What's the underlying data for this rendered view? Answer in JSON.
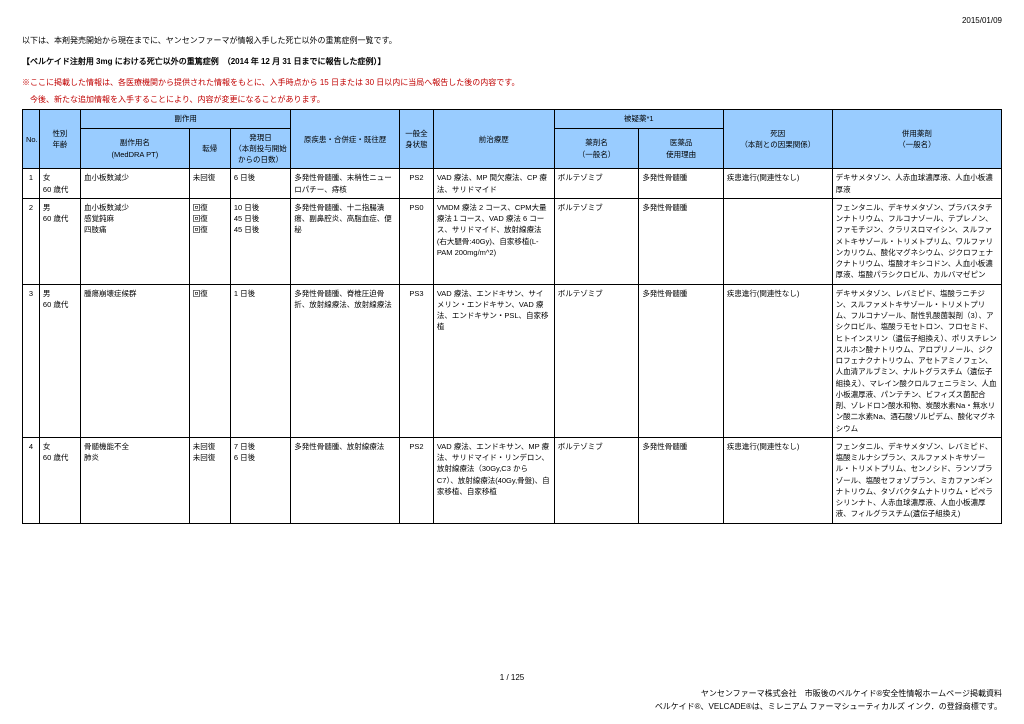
{
  "date": "2015/01/09",
  "intro": "以下は、本剤発売開始から現在までに、ヤンセンファーマが情報入手した死亡以外の重篤症例一覧です。",
  "title": "【ベルケイド注射用 3mg における死亡以外の重篤症例　（2014 年 12 月 31 日までに報告した症例）】",
  "note1": "※ここに掲載した情報は、各医療機関から提供された情報をもとに、入手時点から 15 日または 30 日以内に当局へ報告した後の内容です。",
  "note2": "　今後、新たな追加情報を入手することにより、内容が変更になることがあります。",
  "headers": {
    "no": "No.",
    "sex_age": "性別\n年齢",
    "adr_group": "副作用",
    "adr_name": "副作用名\n(MedDRA PT)",
    "outcome": "転帰",
    "onset": "発現日\n（本剤投与開始\nからの日数）",
    "disease": "原疾患・合併症・既往歴",
    "general": "一般全\n身状態",
    "prev": "前治療歴",
    "suspect_group": "被疑薬*1",
    "drug": "薬剤名\n（一般名）",
    "reason": "医薬品\n使用理由",
    "cause": "死因\n（本剤との因果関係）",
    "concom": "併用薬剤\n（一般名）"
  },
  "rows": [
    {
      "no": "1",
      "sex_age": "女\n60 歳代",
      "adr": "血小板数減少",
      "outcome": "未回復",
      "onset": "6 日後",
      "disease": "多発性骨髄腫、末梢性ニューロパチー、痔核",
      "general": "PS2",
      "prev": "VAD 療法、MP 間欠療法、CP 療法、サリドマイド",
      "drug": "ボルテゾミブ",
      "reason": "多発性骨髄腫",
      "cause": "疾患進行(関連性なし)",
      "concom": "デキサメタゾン、人赤血球濃厚液、人血小板濃厚液"
    },
    {
      "no": "2",
      "sex_age": "男\n60 歳代",
      "adr": "血小板数減少\n感覚鈍麻\n四肢痛",
      "outcome": "回復\n回復\n回復",
      "onset": "10 日後\n45 日後\n45 日後",
      "disease": "多発性骨髄腫、十二指腸潰瘍、副鼻腔炎、高脂血症、便秘",
      "general": "PS0",
      "prev": "VMDM 療法 2 コース、CPM大量療法１コース、VAD 療法 6 コース、サリドマイド、放射線療法(右大腿骨:40Gy)、自家移植(L-PAM 200mg/m^2)",
      "drug": "ボルテゾミブ",
      "reason": "多発性骨髄腫",
      "cause": "",
      "concom": "フェンタニル、デキサメタゾン、プラバスタチンナトリウム、フルコナゾール、テプレノン、ファモチジン、クラリスロマイシン、スルファメトキサゾール・トリメトプリム、ワルファリンカリウム、酸化マグネシウム、ジクロフェナクナトリウム、塩酸オキシコドン、人血小板濃厚液、塩酸パラシクロビル、カルバマゼピン"
    },
    {
      "no": "3",
      "sex_age": "男\n60 歳代",
      "adr": "腫瘍崩壊症候群",
      "outcome": "回復",
      "onset": "1 日後",
      "disease": "多発性骨髄腫、脊椎圧迫骨折、放射線療法、放射線療法",
      "general": "PS3",
      "prev": "VAD 療法、エンドキサン、サイメリン・エンドキサン、VAD 療法、エンドキサン・PSL、自家移植",
      "drug": "ボルテゾミブ",
      "reason": "多発性骨髄腫",
      "cause": "疾患進行(関連性なし)",
      "concom": "デキサメタゾン、レバミピド、塩酸ラニチジン、スルファメトキサゾール・トリメトプリム、フルコナゾール、耐性乳酸菌製剤（3）、アシクロビル、塩酸ラモセトロン、フロセミド、ヒトインスリン（遺伝子組換え）、ポリスチレンスルホン酸ナトリウム、アロプリノール、ジクロフェナクナトリウム、アセトアミノフェン、人血清アルブミン、ナルトグラスチム（遺伝子組換え）、マレイン酸クロルフェニラミン、人血小板濃厚液、パンテチン、ビフィズス菌配合剤、ゾレドロン酸水和物、炭酸水素Na・無水リン酸二水素Na、酒石酸ゾルピデム、酸化マグネシウム"
    },
    {
      "no": "4",
      "sex_age": "女\n60 歳代",
      "adr": "骨髄機能不全\n肺炎",
      "outcome": "未回復\n未回復",
      "onset": "7 日後\n6 日後",
      "disease": "多発性骨髄腫、放射線療法",
      "general": "PS2",
      "prev": "VAD 療法、エンドキサン、MP 療法、サリドマイド・リンデロン、放射線療法（30Gy,C3 から C7）、放射線療法(40Gy,骨盤)、自家移植、自家移植",
      "drug": "ボルテゾミブ",
      "reason": "多発性骨髄腫",
      "cause": "疾患進行(関連性なし)",
      "concom": "フェンタニル、デキサメタゾン、レバミピド、塩酸ミルナシプラン、スルファメトキサゾール・トリメトプリム、センノシド、ランソプラゾール、塩酸セフォゾプラン、ミカファンギンナトリウム、タゾバクタムナトリウム・ピペラシリンナト、人赤血球濃厚液、人血小板濃厚液、フィルグラスチム(遺伝子組換え)"
    }
  ],
  "page": "1 / 125",
  "footer1": "ヤンセンファーマ株式会社　市販後のベルケイド®安全性情報ホームページ掲載資料",
  "footer2": "ベルケイド®、VELCADE®は、ミレニアム ファーマシューティカルズ インク．の登録商標です。"
}
